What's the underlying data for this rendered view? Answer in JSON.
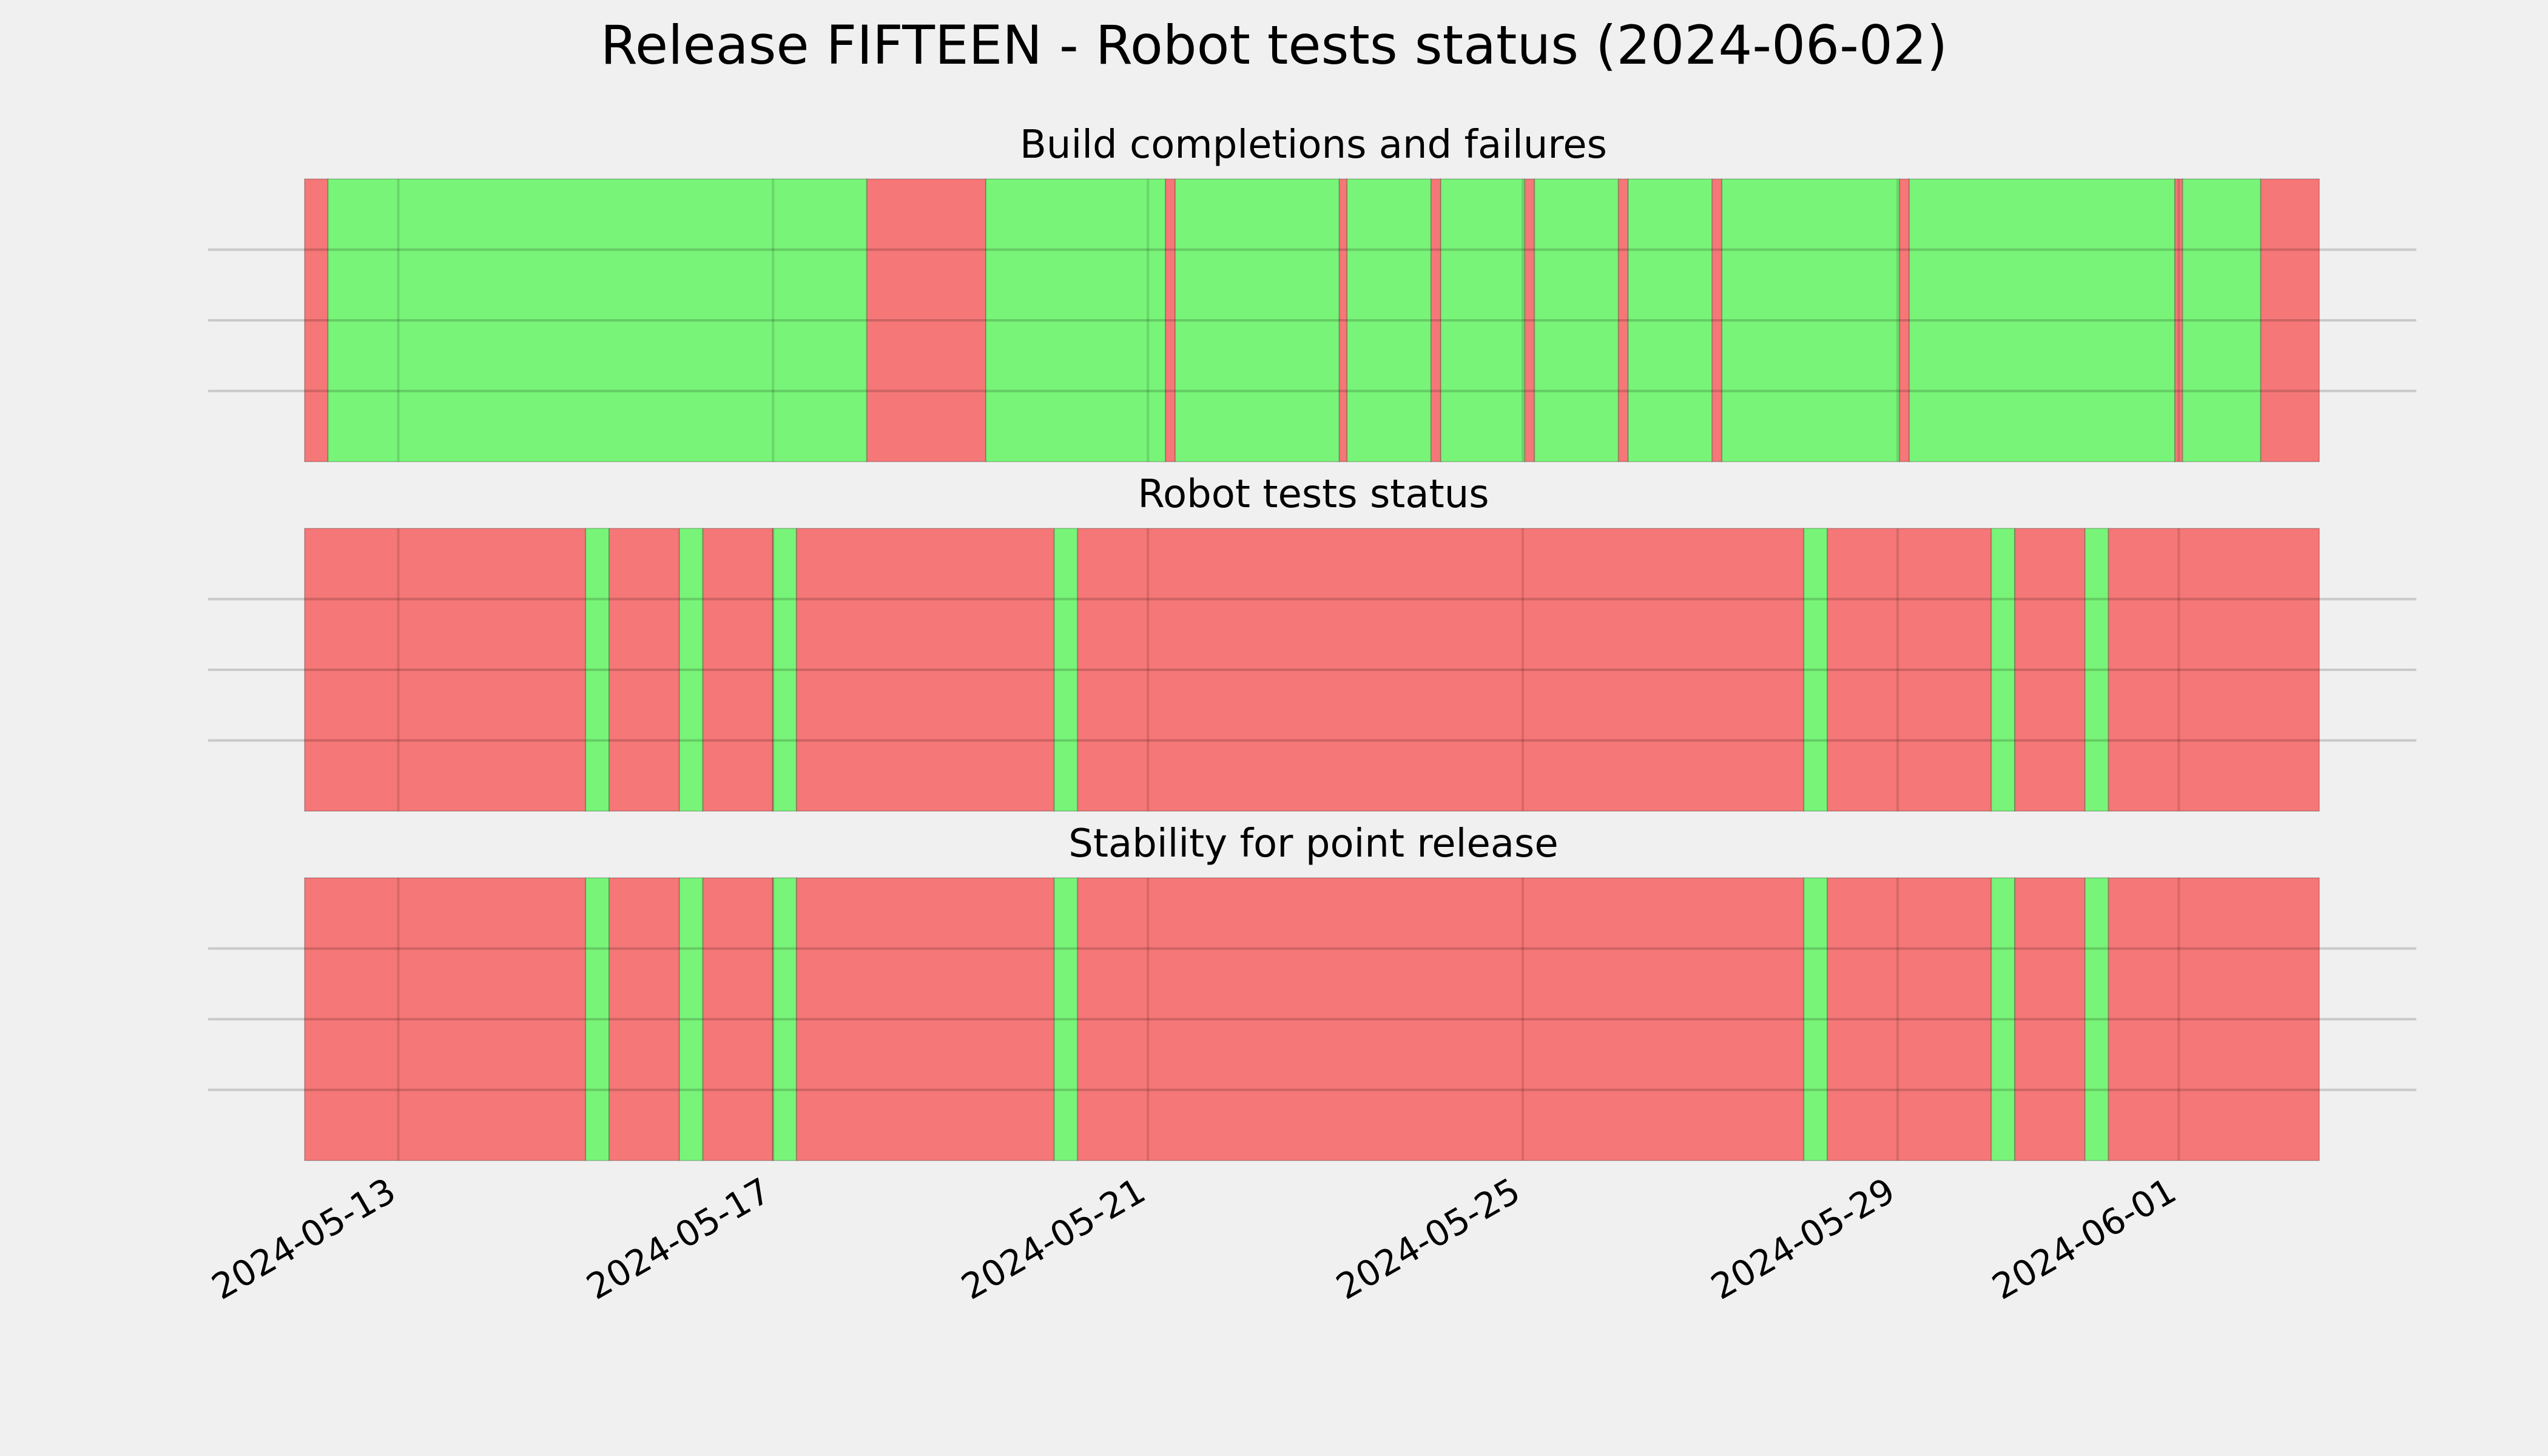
{
  "title": "Release FIFTEEN - Robot tests status (2024-06-02)",
  "colors": {
    "pass": "#78f478",
    "fail": "#f57777",
    "background": "#f0f0f0",
    "grid": "#c8c8c8"
  },
  "chart_data": [
    {
      "type": "status-timeline",
      "title": "Build completions and failures",
      "x_range": [
        "2024-05-12 00:00",
        "2024-06-02 12:00"
      ],
      "grid": true,
      "segments": [
        {
          "start": "2024-05-12 00:00",
          "end": "2024-05-12 06:00",
          "status": "fail"
        },
        {
          "start": "2024-05-12 06:00",
          "end": "2024-05-18 00:00",
          "status": "pass"
        },
        {
          "start": "2024-05-18 00:00",
          "end": "2024-05-19 06:30",
          "status": "fail"
        },
        {
          "start": "2024-05-19 06:30",
          "end": "2024-05-21 04:30",
          "status": "pass"
        },
        {
          "start": "2024-05-21 04:30",
          "end": "2024-05-21 07:00",
          "status": "fail"
        },
        {
          "start": "2024-05-21 07:00",
          "end": "2024-05-23 01:00",
          "status": "pass"
        },
        {
          "start": "2024-05-23 01:00",
          "end": "2024-05-23 03:00",
          "status": "fail"
        },
        {
          "start": "2024-05-23 03:00",
          "end": "2024-05-24 00:30",
          "status": "pass"
        },
        {
          "start": "2024-05-24 00:30",
          "end": "2024-05-24 03:00",
          "status": "fail"
        },
        {
          "start": "2024-05-24 03:00",
          "end": "2024-05-25 00:30",
          "status": "pass"
        },
        {
          "start": "2024-05-25 00:30",
          "end": "2024-05-25 03:00",
          "status": "fail"
        },
        {
          "start": "2024-05-25 03:00",
          "end": "2024-05-26 00:30",
          "status": "pass"
        },
        {
          "start": "2024-05-26 00:30",
          "end": "2024-05-26 03:00",
          "status": "fail"
        },
        {
          "start": "2024-05-26 03:00",
          "end": "2024-05-27 00:30",
          "status": "pass"
        },
        {
          "start": "2024-05-27 00:30",
          "end": "2024-05-27 03:00",
          "status": "fail"
        },
        {
          "start": "2024-05-27 03:00",
          "end": "2024-05-29 00:30",
          "status": "pass"
        },
        {
          "start": "2024-05-29 00:30",
          "end": "2024-05-29 03:00",
          "status": "fail"
        },
        {
          "start": "2024-05-29 03:00",
          "end": "2024-05-31 23:00",
          "status": "pass"
        },
        {
          "start": "2024-05-31 23:00",
          "end": "2024-06-01 01:00",
          "status": "fail"
        },
        {
          "start": "2024-06-01 01:00",
          "end": "2024-06-01 21:00",
          "status": "pass"
        },
        {
          "start": "2024-06-01 21:00",
          "end": "2024-06-02 12:00",
          "status": "fail"
        }
      ]
    },
    {
      "type": "status-timeline",
      "title": "Robot tests status",
      "x_range": [
        "2024-05-12 00:00",
        "2024-06-02 12:00"
      ],
      "grid": true,
      "segments": [
        {
          "start": "2024-05-12 00:00",
          "end": "2024-05-15 00:00",
          "status": "fail"
        },
        {
          "start": "2024-05-15 00:00",
          "end": "2024-05-15 06:00",
          "status": "pass"
        },
        {
          "start": "2024-05-15 06:00",
          "end": "2024-05-16 00:00",
          "status": "fail"
        },
        {
          "start": "2024-05-16 00:00",
          "end": "2024-05-16 06:00",
          "status": "pass"
        },
        {
          "start": "2024-05-16 06:00",
          "end": "2024-05-17 00:00",
          "status": "fail"
        },
        {
          "start": "2024-05-17 00:00",
          "end": "2024-05-17 06:00",
          "status": "pass"
        },
        {
          "start": "2024-05-17 06:00",
          "end": "2024-05-20 00:00",
          "status": "fail"
        },
        {
          "start": "2024-05-20 00:00",
          "end": "2024-05-20 06:00",
          "status": "pass"
        },
        {
          "start": "2024-05-20 06:00",
          "end": "2024-05-28 00:00",
          "status": "fail"
        },
        {
          "start": "2024-05-28 00:00",
          "end": "2024-05-28 06:00",
          "status": "pass"
        },
        {
          "start": "2024-05-28 06:00",
          "end": "2024-05-30 00:00",
          "status": "fail"
        },
        {
          "start": "2024-05-30 00:00",
          "end": "2024-05-30 06:00",
          "status": "pass"
        },
        {
          "start": "2024-05-30 06:00",
          "end": "2024-05-31 00:00",
          "status": "fail"
        },
        {
          "start": "2024-05-31 00:00",
          "end": "2024-05-31 06:00",
          "status": "pass"
        },
        {
          "start": "2024-05-31 06:00",
          "end": "2024-06-02 12:00",
          "status": "fail"
        }
      ]
    },
    {
      "type": "status-timeline",
      "title": "Stability for point release",
      "x_range": [
        "2024-05-12 00:00",
        "2024-06-02 12:00"
      ],
      "grid": true,
      "segments": [
        {
          "start": "2024-05-12 00:00",
          "end": "2024-05-15 00:00",
          "status": "fail"
        },
        {
          "start": "2024-05-15 00:00",
          "end": "2024-05-15 06:00",
          "status": "pass"
        },
        {
          "start": "2024-05-15 06:00",
          "end": "2024-05-16 00:00",
          "status": "fail"
        },
        {
          "start": "2024-05-16 00:00",
          "end": "2024-05-16 06:00",
          "status": "pass"
        },
        {
          "start": "2024-05-16 06:00",
          "end": "2024-05-17 00:00",
          "status": "fail"
        },
        {
          "start": "2024-05-17 00:00",
          "end": "2024-05-17 06:00",
          "status": "pass"
        },
        {
          "start": "2024-05-17 06:00",
          "end": "2024-05-20 00:00",
          "status": "fail"
        },
        {
          "start": "2024-05-20 00:00",
          "end": "2024-05-20 06:00",
          "status": "pass"
        },
        {
          "start": "2024-05-20 06:00",
          "end": "2024-05-28 00:00",
          "status": "fail"
        },
        {
          "start": "2024-05-28 00:00",
          "end": "2024-05-28 06:00",
          "status": "pass"
        },
        {
          "start": "2024-05-28 06:00",
          "end": "2024-05-30 00:00",
          "status": "fail"
        },
        {
          "start": "2024-05-30 00:00",
          "end": "2024-05-30 06:00",
          "status": "pass"
        },
        {
          "start": "2024-05-30 06:00",
          "end": "2024-05-31 00:00",
          "status": "fail"
        },
        {
          "start": "2024-05-31 00:00",
          "end": "2024-05-31 06:00",
          "status": "pass"
        },
        {
          "start": "2024-05-31 06:00",
          "end": "2024-06-02 12:00",
          "status": "fail"
        }
      ]
    }
  ],
  "x_ticks": [
    "2024-05-13",
    "2024-05-17",
    "2024-05-21",
    "2024-05-25",
    "2024-05-29",
    "2024-06-01"
  ]
}
